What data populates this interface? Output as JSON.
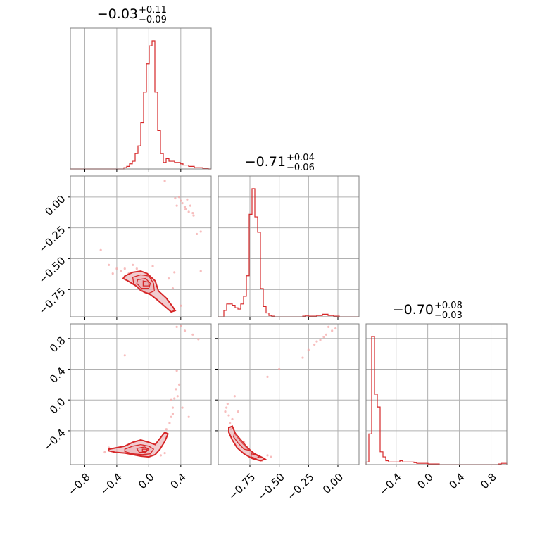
{
  "chart_data": {
    "type": "corner",
    "colors": {
      "series": "#d62728",
      "grid": "#b0b0b0",
      "frame": "#808080",
      "scatter": "#f4a3a3",
      "contour_fill": "#e6a3a8"
    },
    "grid": true,
    "titles": [
      {
        "median": "−0.03",
        "plus": "+0.11",
        "minus": "−0.09"
      },
      {
        "median": "−0.71",
        "plus": "+0.04",
        "minus": "−0.06"
      },
      {
        "median": "−0.70",
        "plus": "+0.08",
        "minus": "−0.03"
      }
    ],
    "x_ranges": [
      [
        -0.98,
        0.78
      ],
      [
        -1.02,
        0.18
      ],
      [
        -0.78,
        1.0
      ]
    ],
    "y_ranges": [
      [
        null,
        null
      ],
      [
        -0.97,
        0.17
      ],
      [
        -0.84,
        0.99
      ]
    ],
    "x_ticks": [
      {
        "values": [
          -0.8,
          -0.4,
          0.0,
          0.4
        ],
        "labels": [
          "−0.8",
          "−0.4",
          "0.0",
          "0.4"
        ]
      },
      {
        "values": [
          -0.75,
          -0.5,
          -0.25,
          0.0
        ],
        "labels": [
          "−0.75",
          "−0.50",
          "−0.25",
          "0.00"
        ]
      },
      {
        "values": [
          -0.4,
          0.0,
          0.4,
          0.8
        ],
        "labels": [
          "−0.4",
          "0.0",
          "0.4",
          "0.8"
        ]
      }
    ],
    "y_ticks": [
      null,
      {
        "values": [
          0.0,
          -0.25,
          -0.5,
          -0.75
        ],
        "labels": [
          "0.00",
          "−0.25",
          "−0.50",
          "−0.75"
        ]
      },
      {
        "values": [
          0.8,
          0.4,
          0.0,
          -0.4
        ],
        "labels": [
          "0.8",
          "0.4",
          "0.0",
          "−0.4"
        ]
      }
    ],
    "hist_bins": 50,
    "histograms": [
      [
        0,
        0,
        0,
        0,
        0,
        0,
        0,
        0,
        0,
        0,
        0,
        0,
        0,
        0,
        0,
        0,
        0,
        0,
        0,
        0.01,
        0.02,
        0.04,
        0.06,
        0.12,
        0.18,
        0.36,
        0.6,
        0.82,
        0.96,
        1.0,
        0.6,
        0.3,
        0.12,
        0.05,
        0.08,
        0.06,
        0.06,
        0.05,
        0.05,
        0.04,
        0.03,
        0.03,
        0.02,
        0.02,
        0.01,
        0.01,
        0.01,
        0.005,
        0.005,
        0
      ],
      [
        0,
        0,
        0.05,
        0.1,
        0.1,
        0.09,
        0.07,
        0.06,
        0.1,
        0.16,
        0.32,
        0.8,
        1.0,
        0.78,
        0.66,
        0.22,
        0.08,
        0.03,
        0.01,
        0.005,
        0,
        0,
        0,
        0,
        0,
        0,
        0,
        0,
        0,
        0,
        0.005,
        0.01,
        0.005,
        0.005,
        0.005,
        0.01,
        0.01,
        0.02,
        0.02,
        0.01,
        0.01,
        0.005,
        0.005,
        0,
        0,
        0,
        0,
        0,
        0,
        0
      ],
      [
        0.02,
        0.24,
        1.0,
        0.55,
        0.45,
        0.1,
        0.06,
        0.03,
        0.02,
        0.02,
        0.02,
        0.02,
        0.03,
        0.02,
        0.02,
        0.02,
        0.02,
        0.015,
        0.01,
        0.01,
        0.01,
        0.01,
        0.005,
        0.005,
        0.005,
        0.005,
        0,
        0,
        0,
        0,
        0,
        0,
        0,
        0,
        0,
        0,
        0,
        0,
        0,
        0,
        0,
        0,
        0,
        0,
        0,
        0,
        0,
        0.005,
        0.01,
        0.01
      ]
    ],
    "pairs": [
      {
        "row": 1,
        "col": 0,
        "contours": [
          [
            [
              -0.3,
              -0.64
            ],
            [
              -0.2,
              -0.61
            ],
            [
              -0.1,
              -0.6
            ],
            [
              -0.02,
              -0.62
            ],
            [
              0.08,
              -0.68
            ],
            [
              0.12,
              -0.76
            ],
            [
              0.22,
              -0.82
            ],
            [
              0.3,
              -0.89
            ],
            [
              0.33,
              -0.92
            ],
            [
              0.28,
              -0.93
            ],
            [
              0.19,
              -0.88
            ],
            [
              0.1,
              -0.83
            ],
            [
              0.02,
              -0.79
            ],
            [
              -0.06,
              -0.77
            ],
            [
              -0.16,
              -0.72
            ],
            [
              -0.26,
              -0.68
            ],
            [
              -0.32,
              -0.66
            ]
          ],
          [
            [
              -0.2,
              -0.65
            ],
            [
              -0.1,
              -0.63
            ],
            [
              0.0,
              -0.64
            ],
            [
              0.06,
              -0.7
            ],
            [
              0.07,
              -0.76
            ],
            [
              0.0,
              -0.78
            ],
            [
              -0.1,
              -0.76
            ],
            [
              -0.19,
              -0.7
            ]
          ],
          [
            [
              -0.14,
              -0.67
            ],
            [
              -0.04,
              -0.66
            ],
            [
              0.02,
              -0.7
            ],
            [
              0.0,
              -0.74
            ],
            [
              -0.09,
              -0.74
            ],
            [
              -0.15,
              -0.7
            ]
          ],
          [
            [
              -0.07,
              -0.68
            ],
            [
              0.0,
              -0.69
            ],
            [
              0.0,
              -0.72
            ],
            [
              -0.07,
              -0.72
            ]
          ]
        ],
        "points": [
          [
            0.2,
            0.13
          ],
          [
            0.38,
            0.0
          ],
          [
            0.42,
            -0.05
          ],
          [
            0.35,
            -0.07
          ],
          [
            0.48,
            -0.02
          ],
          [
            0.5,
            -0.12
          ],
          [
            0.55,
            -0.13
          ],
          [
            0.65,
            -0.28
          ],
          [
            0.6,
            -0.3
          ],
          [
            0.45,
            -0.08
          ],
          [
            0.4,
            -0.03
          ],
          [
            0.52,
            -0.07
          ],
          [
            0.33,
            -0.01
          ],
          [
            0.56,
            -0.15
          ],
          [
            0.46,
            -0.1
          ],
          [
            -0.6,
            -0.43
          ],
          [
            -0.5,
            -0.55
          ],
          [
            -0.4,
            -0.58
          ],
          [
            -0.35,
            -0.6
          ],
          [
            -0.45,
            -0.62
          ],
          [
            -0.3,
            -0.58
          ],
          [
            0.05,
            -0.56
          ],
          [
            -0.2,
            -0.55
          ],
          [
            0.32,
            -0.61
          ],
          [
            0.65,
            -0.6
          ],
          [
            0.25,
            -0.66
          ],
          [
            0.3,
            -0.74
          ],
          [
            0.4,
            -0.88
          ],
          [
            -0.25,
            -0.62
          ],
          [
            -0.15,
            -0.58
          ]
        ]
      },
      {
        "row": 2,
        "col": 0,
        "contours": [
          [
            [
              -0.5,
              -0.64
            ],
            [
              -0.4,
              -0.62
            ],
            [
              -0.3,
              -0.6
            ],
            [
              -0.2,
              -0.55
            ],
            [
              -0.1,
              -0.52
            ],
            [
              0.0,
              -0.55
            ],
            [
              0.08,
              -0.58
            ],
            [
              0.14,
              -0.5
            ],
            [
              0.2,
              -0.42
            ],
            [
              0.24,
              -0.44
            ],
            [
              0.2,
              -0.54
            ],
            [
              0.14,
              -0.64
            ],
            [
              0.08,
              -0.71
            ],
            [
              0.0,
              -0.74
            ],
            [
              -0.1,
              -0.73
            ],
            [
              -0.2,
              -0.71
            ],
            [
              -0.3,
              -0.69
            ],
            [
              -0.42,
              -0.68
            ],
            [
              -0.5,
              -0.66
            ]
          ],
          [
            [
              -0.3,
              -0.64
            ],
            [
              -0.2,
              -0.6
            ],
            [
              -0.1,
              -0.58
            ],
            [
              0.0,
              -0.6
            ],
            [
              0.06,
              -0.64
            ],
            [
              0.02,
              -0.7
            ],
            [
              -0.08,
              -0.71
            ],
            [
              -0.2,
              -0.7
            ],
            [
              -0.3,
              -0.67
            ]
          ],
          [
            [
              -0.15,
              -0.63
            ],
            [
              -0.05,
              -0.61
            ],
            [
              0.0,
              -0.64
            ],
            [
              -0.04,
              -0.68
            ],
            [
              -0.12,
              -0.68
            ]
          ],
          [
            [
              -0.08,
              -0.64
            ],
            [
              -0.02,
              -0.64
            ],
            [
              -0.03,
              -0.67
            ],
            [
              -0.08,
              -0.67
            ]
          ]
        ],
        "points": [
          [
            0.35,
            0.95
          ],
          [
            0.45,
            0.9
          ],
          [
            0.55,
            0.85
          ],
          [
            0.62,
            0.79
          ],
          [
            0.4,
            0.96
          ],
          [
            0.28,
            -0.22
          ],
          [
            0.3,
            -0.1
          ],
          [
            0.32,
            0.02
          ],
          [
            0.34,
            0.14
          ],
          [
            0.36,
            0.05
          ],
          [
            0.26,
            -0.3
          ],
          [
            0.22,
            -0.38
          ],
          [
            0.38,
            0.2
          ],
          [
            0.3,
            -0.18
          ],
          [
            0.28,
            0.0
          ],
          [
            -0.55,
            -0.68
          ],
          [
            -0.5,
            -0.62
          ],
          [
            -0.05,
            -0.7
          ],
          [
            0.15,
            -0.72
          ],
          [
            0.2,
            -0.69
          ],
          [
            -0.3,
            0.58
          ],
          [
            0.35,
            0.38
          ],
          [
            0.5,
            -0.22
          ],
          [
            0.42,
            -0.1
          ]
        ]
      },
      {
        "row": 2,
        "col": 1,
        "contours": [
          [
            [
              -0.9,
              -0.34
            ],
            [
              -0.87,
              -0.45
            ],
            [
              -0.82,
              -0.55
            ],
            [
              -0.77,
              -0.63
            ],
            [
              -0.71,
              -0.7
            ],
            [
              -0.64,
              -0.75
            ],
            [
              -0.62,
              -0.77
            ],
            [
              -0.66,
              -0.79
            ],
            [
              -0.73,
              -0.76
            ],
            [
              -0.8,
              -0.7
            ],
            [
              -0.86,
              -0.62
            ],
            [
              -0.9,
              -0.52
            ],
            [
              -0.93,
              -0.42
            ],
            [
              -0.93,
              -0.36
            ]
          ],
          [
            [
              -0.88,
              -0.42
            ],
            [
              -0.83,
              -0.51
            ],
            [
              -0.78,
              -0.6
            ],
            [
              -0.74,
              -0.66
            ],
            [
              -0.8,
              -0.64
            ],
            [
              -0.85,
              -0.56
            ],
            [
              -0.89,
              -0.48
            ]
          ],
          [
            [
              -0.74,
              -0.7
            ],
            [
              -0.7,
              -0.71
            ],
            [
              -0.67,
              -0.74
            ],
            [
              -0.7,
              -0.76
            ],
            [
              -0.74,
              -0.74
            ]
          ]
        ],
        "points": [
          [
            -0.2,
            0.72
          ],
          [
            -0.15,
            0.78
          ],
          [
            -0.1,
            0.85
          ],
          [
            -0.05,
            0.9
          ],
          [
            -0.02,
            0.93
          ],
          [
            -0.12,
            0.82
          ],
          [
            -0.18,
            0.76
          ],
          [
            -0.08,
            0.95
          ],
          [
            -0.5,
            0.4
          ],
          [
            -0.3,
            0.55
          ],
          [
            -0.25,
            0.65
          ],
          [
            -0.6,
            0.3
          ],
          [
            -0.95,
            -0.1
          ],
          [
            -0.93,
            -0.2
          ],
          [
            -0.96,
            -0.15
          ],
          [
            -0.9,
            -0.25
          ],
          [
            -0.92,
            -0.3
          ],
          [
            -0.94,
            -0.05
          ],
          [
            -0.88,
            0.05
          ],
          [
            -0.85,
            -0.15
          ],
          [
            -0.91,
            -0.38
          ],
          [
            -0.6,
            -0.72
          ],
          [
            -0.57,
            -0.74
          ],
          [
            -0.65,
            -0.79
          ],
          [
            -0.8,
            -0.55
          ]
        ]
      }
    ]
  }
}
